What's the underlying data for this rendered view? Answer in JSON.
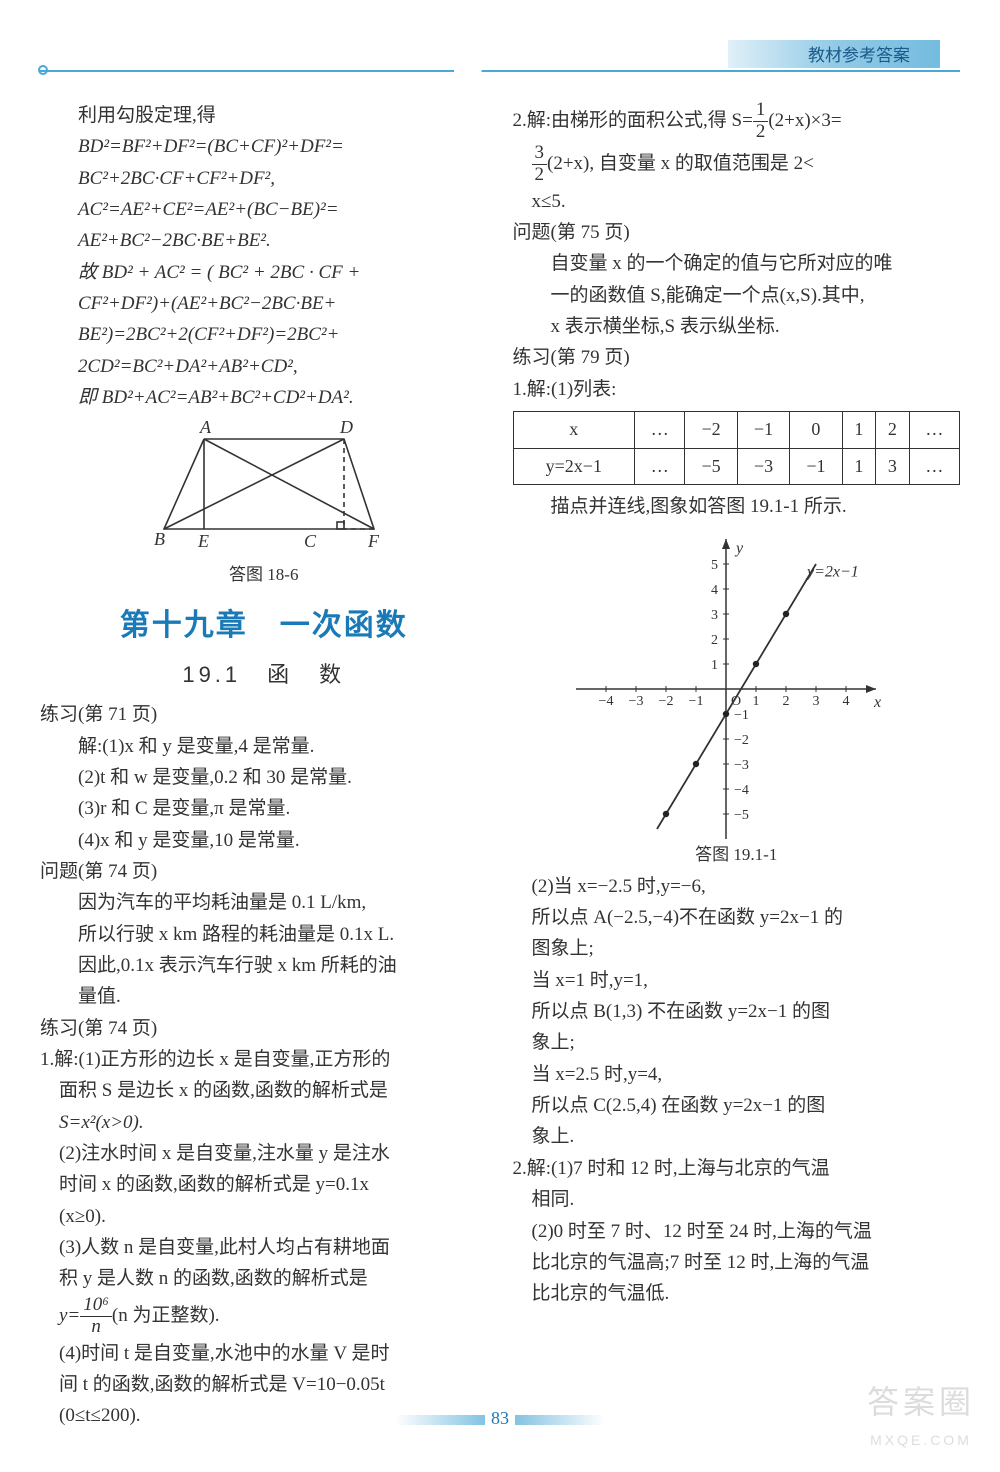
{
  "header": {
    "title": "教材参考答案"
  },
  "page_number": "83",
  "watermark": {
    "line1": "答案圈",
    "line2": "MXQE.COM"
  },
  "left": {
    "p1": "利用勾股定理,得",
    "p2": "BD²=BF²+DF²=(BC+CF)²+DF²=",
    "p3": "BC²+2BC·CF+CF²+DF²,",
    "p4": "AC²=AE²+CE²=AE²+(BC−BE)²=",
    "p5": "AE²+BC²−2BC·BE+BE².",
    "p6": "故 BD² + AC² = ( BC² + 2BC · CF +",
    "p7": "CF²+DF²)+(AE²+BC²−2BC·BE+",
    "p8": "BE²)=2BC²+2(CF²+DF²)=2BC²+",
    "p9": "2CD²=BC²+DA²+AB²+CD²,",
    "p10": "即 BD²+AC²=AB²+BC²+CD²+DA².",
    "fig1_caption": "答图 18-6",
    "fig1": {
      "labels": {
        "A": "A",
        "B": "B",
        "C": "C",
        "D": "D",
        "E": "E",
        "F": "F"
      },
      "stroke": "#333",
      "dash": "4 3"
    },
    "chapter": "第十九章　一次函数",
    "section": "19.1　函　数",
    "ex71_h": "练习(第 71 页)",
    "ex71_1": "解:(1)x 和 y 是变量,4 是常量.",
    "ex71_2": "(2)t 和 w 是变量,0.2 和 30 是常量.",
    "ex71_3": "(3)r 和 C 是变量,π 是常量.",
    "ex71_4": "(4)x 和 y 是变量,10 是常量.",
    "q74_h": "问题(第 74 页)",
    "q74_1": "因为汽车的平均耗油量是 0.1 L/km,",
    "q74_2": "所以行驶 x km 路程的耗油量是 0.1x L.",
    "q74_3": "因此,0.1x 表示汽车行驶 x km 所耗的油",
    "q74_4": "量值.",
    "ex74_h": "练习(第 74 页)",
    "ex74_1a": "1.解:(1)正方形的边长 x 是自变量,正方形的",
    "ex74_1b": "面积 S 是边长 x 的函数,函数的解析式是",
    "ex74_1c": "S=x²(x>0).",
    "ex74_2a": "(2)注水时间 x 是自变量,注水量 y 是注水",
    "ex74_2b": "时间 x 的函数,函数的解析式是 y=0.1x",
    "ex74_2c": "(x≥0).",
    "ex74_3a": "(3)人数 n 是自变量,此村人均占有耕地面",
    "ex74_3b": "积 y 是人数 n 的函数,函数的解析式是",
    "ex74_3c_pre": "y=",
    "ex74_3c_num": "10⁶",
    "ex74_3c_den": "n",
    "ex74_3c_post": "(n 为正整数).",
    "ex74_4a": "(4)时间 t 是自变量,水池中的水量 V 是时",
    "ex74_4b": "间 t 的函数,函数的解析式是 V=10−0.05t",
    "ex74_4c": "(0≤t≤200)."
  },
  "right": {
    "p1_pre": "2.解:由梯形的面积公式,得 S=",
    "p1_num": "1",
    "p1_den": "2",
    "p1_post": "(2+x)×3=",
    "p2_num": "3",
    "p2_den": "2",
    "p2_mid": "(2+x), 自变量 x 的取值范围是 2<",
    "p3": "x≤5.",
    "q75_h": "问题(第 75 页)",
    "q75_1": "自变量 x 的一个确定的值与它所对应的唯",
    "q75_2": "一的函数值 S,能确定一个点(x,S).其中,",
    "q75_3": "x 表示横坐标,S 表示纵坐标.",
    "ex79_h": "练习(第 79 页)",
    "ex79_1h": "1.解:(1)列表:",
    "table": {
      "row1": [
        "x",
        "…",
        "−2",
        "−1",
        "0",
        "1",
        "2",
        "…"
      ],
      "row2": [
        "y=2x−1",
        "…",
        "−5",
        "−3",
        "−1",
        "1",
        "3",
        "…"
      ]
    },
    "table_after": "描点并连线,图象如答图 19.1-1 所示.",
    "graph": {
      "xlim": [
        -5,
        5
      ],
      "ylim": [
        -6,
        6
      ],
      "xticks": [
        "−4",
        "−3",
        "−2",
        "−1",
        "O",
        "1",
        "2",
        "3",
        "4"
      ],
      "yticks_pos": [
        "1",
        "2",
        "3",
        "4",
        "5"
      ],
      "yticks_neg": [
        "−1",
        "−2",
        "−3",
        "−4",
        "−5"
      ],
      "xlabel": "x",
      "ylabel": "y",
      "line_label": "y=2x−1",
      "axis_color": "#333",
      "point_color": "#222",
      "line_color": "#333"
    },
    "fig2_caption": "答图 19.1-1",
    "p2_1": "(2)当 x=−2.5 时,y=−6,",
    "p2_2": "所以点 A(−2.5,−4)不在函数 y=2x−1 的",
    "p2_3": "图象上;",
    "p2_4": "当 x=1 时,y=1,",
    "p2_5": "所以点 B(1,3) 不在函数 y=2x−1 的图",
    "p2_6": "象上;",
    "p2_7": "当 x=2.5 时,y=4,",
    "p2_8": "所以点 C(2.5,4) 在函数 y=2x−1 的图",
    "p2_9": "象上.",
    "q2_1": "2.解:(1)7 时和 12 时,上海与北京的气温",
    "q2_2": "相同.",
    "q2_3": "(2)0 时至 7 时、12 时至 24 时,上海的气温",
    "q2_4": "比北京的气温高;7 时至 12 时,上海的气温",
    "q2_5": "比北京的气温低."
  }
}
